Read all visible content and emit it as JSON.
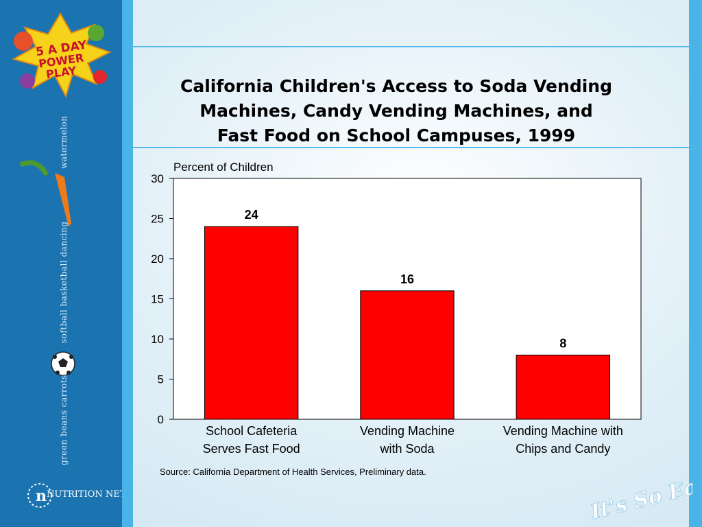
{
  "slide": {
    "title_lines": [
      "California Children's Access to Soda Vending",
      "Machines, Candy Vending Machines, and",
      "Fast Food on School Campuses, 1999"
    ],
    "source": "Source: California Department of Health Services, Preliminary data.",
    "sidebar_words": [
      "watermelon",
      "softball  basketball  dancing",
      "green beans  carrots"
    ],
    "logo_text": "5 A DAY POWER PLAY",
    "network_logo_text": "NUTRITION NETWORK",
    "tagline": "It's So Easy.",
    "colors": {
      "sidebar": "#1b74b0",
      "accent": "#4ab4e8",
      "bar": "#ff0000"
    }
  },
  "chart_data": {
    "type": "bar",
    "ylabel": "Percent of Children",
    "xlabel": "",
    "categories": [
      [
        "School Cafeteria",
        "Serves Fast Food"
      ],
      [
        "Vending Machine",
        "with Soda"
      ],
      [
        "Vending Machine with",
        "Chips and Candy"
      ]
    ],
    "values": [
      24,
      16,
      8
    ],
    "data_labels": [
      "24",
      "16",
      "8"
    ],
    "ylim": [
      0,
      30
    ],
    "yticks": [
      0,
      5,
      10,
      15,
      20,
      25,
      30
    ],
    "grid": false,
    "legend": "none"
  }
}
